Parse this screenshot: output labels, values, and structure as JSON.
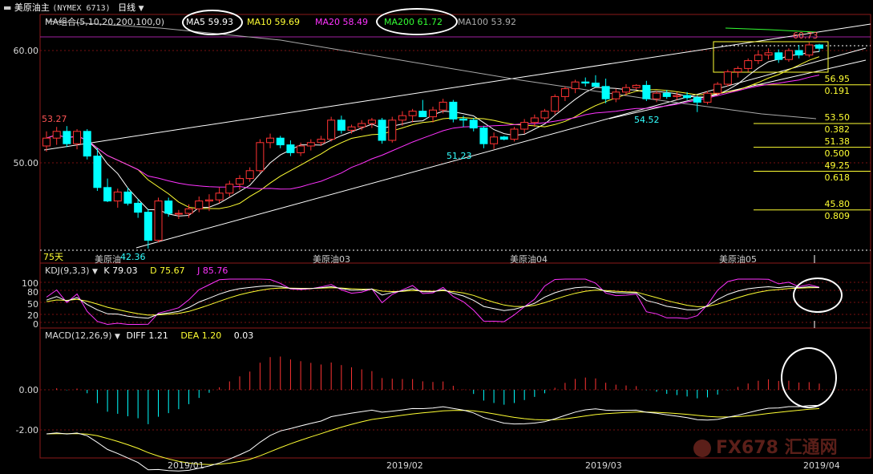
{
  "header": {
    "title": "美原油主",
    "code": "(NYMEX 6713)",
    "period": "日线",
    "period_arrow": "▼",
    "ma_label": "MA组合(5,10,20,200,100,0)",
    "ma_items": [
      {
        "label": "MA5",
        "value": "59.93",
        "color": "#ffffff"
      },
      {
        "label": "MA10",
        "value": "59.69",
        "color": "#ffff33"
      },
      {
        "label": "MA20",
        "value": "58.49",
        "color": "#ff33ff"
      },
      {
        "label": "MA200",
        "value": "61.72",
        "color": "#33ff33"
      },
      {
        "label": "MA100",
        "value": "53.92",
        "color": "#aaaaaa"
      }
    ]
  },
  "price_axis": {
    "ticks": [
      "60.00",
      "50.00"
    ]
  },
  "price_annotations": {
    "high_left": "53.27",
    "low_left": "42.36",
    "low_mid": "51.23",
    "low_right": "54.52",
    "high_right": "60.73",
    "period_count": "75天"
  },
  "fib_levels": [
    {
      "price": "56.95",
      "ratio": "0.191"
    },
    {
      "price": "53.50",
      "ratio": "0.382"
    },
    {
      "price": "51.38",
      "ratio": "0.500"
    },
    {
      "price": "49.25",
      "ratio": "0.618"
    },
    {
      "price": "45.80",
      "ratio": "0.809"
    }
  ],
  "contract_labels": [
    "美原油03",
    "美原油04",
    "美原油05"
  ],
  "contract_label_first": "美原油",
  "kdj": {
    "label": "KDJ(9,3,3)",
    "k": "K 79.03",
    "d": "D 75.67",
    "j": "J 85.76",
    "ticks": [
      "100",
      "80",
      "50",
      "20",
      "0"
    ]
  },
  "macd": {
    "label": "MACD(12,26,9)",
    "diff": "DIFF 1.21",
    "dea": "DEA 1.20",
    "value": "0.03",
    "ticks": [
      "0.00",
      "-2.00"
    ]
  },
  "x_axis": {
    "labels": [
      "2019/01",
      "2019/02",
      "2019/03",
      "2019/04"
    ]
  },
  "watermark": "FX678 汇通网",
  "colors": {
    "up": "#ff3333",
    "down": "#00ffff",
    "ma5": "#ffffff",
    "ma10": "#ffff33",
    "ma20": "#ff33ff",
    "ma200": "#33ff33",
    "ma100": "#aaaaaa"
  },
  "chart_data": {
    "type": "candlestick",
    "title": "美原油主 (NYMEX 6713) 日线",
    "ylim": [
      42,
      62
    ],
    "candles_ohlc": [
      [
        51.5,
        52.8,
        51.0,
        52.2
      ],
      [
        52.2,
        53.2,
        51.6,
        52.8
      ],
      [
        52.8,
        53.27,
        51.4,
        51.7
      ],
      [
        51.7,
        53.0,
        51.2,
        52.8
      ],
      [
        52.8,
        53.0,
        50.3,
        50.6
      ],
      [
        50.6,
        51.3,
        47.5,
        47.8
      ],
      [
        47.8,
        48.6,
        46.5,
        46.6
      ],
      [
        46.6,
        47.7,
        46.0,
        47.4
      ],
      [
        47.4,
        47.8,
        46.2,
        46.4
      ],
      [
        46.4,
        46.8,
        45.1,
        45.6
      ],
      [
        45.6,
        45.9,
        42.36,
        43.1
      ],
      [
        43.1,
        46.9,
        42.9,
        46.6
      ],
      [
        46.6,
        46.9,
        45.2,
        45.5
      ],
      [
        45.5,
        45.8,
        45.0,
        45.5
      ],
      [
        45.5,
        46.3,
        45.1,
        45.9
      ],
      [
        45.9,
        47.0,
        45.6,
        46.6
      ],
      [
        46.6,
        47.2,
        45.7,
        46.7
      ],
      [
        46.7,
        47.8,
        46.4,
        47.3
      ],
      [
        47.3,
        48.4,
        47.0,
        48.1
      ],
      [
        48.1,
        48.9,
        47.6,
        48.6
      ],
      [
        48.6,
        49.6,
        48.3,
        49.3
      ],
      [
        49.3,
        52.1,
        49.1,
        51.8
      ],
      [
        51.8,
        52.6,
        51.3,
        52.2
      ],
      [
        52.2,
        52.4,
        51.3,
        51.6
      ],
      [
        51.6,
        52.0,
        50.6,
        50.9
      ],
      [
        50.9,
        51.8,
        50.6,
        51.5
      ],
      [
        51.5,
        52.1,
        51.1,
        51.8
      ],
      [
        51.8,
        52.4,
        51.5,
        52.1
      ],
      [
        52.1,
        54.1,
        51.9,
        53.8
      ],
      [
        53.8,
        54.2,
        52.6,
        52.9
      ],
      [
        52.9,
        53.4,
        52.6,
        53.2
      ],
      [
        53.2,
        53.8,
        52.9,
        53.5
      ],
      [
        53.5,
        54.0,
        53.1,
        53.8
      ],
      [
        53.8,
        54.0,
        51.7,
        52.0
      ],
      [
        52.0,
        54.1,
        51.8,
        53.8
      ],
      [
        53.8,
        54.6,
        53.3,
        54.2
      ],
      [
        54.2,
        54.8,
        53.6,
        54.6
      ],
      [
        54.6,
        55.6,
        54.2,
        54.1
      ],
      [
        54.1,
        55.0,
        53.6,
        54.7
      ],
      [
        54.7,
        55.7,
        54.4,
        55.4
      ],
      [
        55.4,
        55.6,
        53.6,
        53.9
      ],
      [
        53.9,
        54.2,
        53.2,
        53.8
      ],
      [
        53.8,
        54.0,
        52.8,
        53.1
      ],
      [
        53.1,
        53.3,
        51.3,
        51.7
      ],
      [
        51.7,
        52.7,
        51.23,
        52.3
      ],
      [
        52.3,
        52.4,
        52.0,
        52.1
      ],
      [
        52.1,
        53.2,
        51.9,
        53.0
      ],
      [
        53.0,
        53.9,
        52.6,
        53.6
      ],
      [
        53.6,
        54.3,
        53.2,
        54.0
      ],
      [
        54.0,
        54.8,
        53.8,
        54.6
      ],
      [
        54.6,
        56.1,
        54.3,
        55.9
      ],
      [
        55.9,
        56.8,
        55.5,
        56.6
      ],
      [
        56.6,
        57.4,
        56.2,
        57.2
      ],
      [
        57.2,
        57.6,
        56.8,
        57.1
      ],
      [
        57.1,
        57.8,
        56.9,
        56.8
      ],
      [
        56.8,
        57.5,
        55.3,
        55.7
      ],
      [
        55.7,
        56.6,
        55.4,
        56.3
      ],
      [
        56.3,
        57.0,
        56.0,
        56.7
      ],
      [
        56.7,
        57.0,
        56.5,
        56.9
      ],
      [
        56.9,
        57.3,
        55.5,
        55.7
      ],
      [
        55.7,
        56.4,
        55.4,
        56.2
      ],
      [
        56.2,
        56.5,
        55.7,
        55.9
      ],
      [
        55.9,
        56.3,
        55.6,
        56.0
      ],
      [
        56.0,
        56.3,
        55.6,
        55.8
      ],
      [
        55.8,
        56.0,
        54.52,
        55.4
      ],
      [
        55.4,
        56.4,
        55.2,
        56.2
      ],
      [
        56.2,
        57.2,
        56.0,
        57.0
      ],
      [
        57.0,
        58.3,
        56.8,
        58.1
      ],
      [
        58.1,
        58.6,
        57.6,
        58.4
      ],
      [
        58.4,
        59.3,
        58.1,
        59.1
      ],
      [
        59.1,
        60.0,
        58.8,
        59.6
      ],
      [
        59.6,
        60.2,
        59.2,
        59.8
      ],
      [
        59.8,
        60.1,
        58.9,
        59.2
      ],
      [
        59.2,
        60.2,
        59.0,
        60.0
      ],
      [
        60.0,
        60.5,
        59.3,
        59.6
      ],
      [
        59.6,
        60.73,
        59.4,
        60.5
      ],
      [
        60.5,
        60.6,
        59.9,
        60.2
      ]
    ],
    "fib_levels": [
      56.95,
      53.5,
      51.38,
      49.25,
      45.8
    ],
    "kdj_latest": {
      "K": 79.03,
      "D": 75.67,
      "J": 85.76
    },
    "macd_latest": {
      "DIFF": 1.21,
      "DEA": 1.2,
      "MACD": 0.03
    }
  }
}
